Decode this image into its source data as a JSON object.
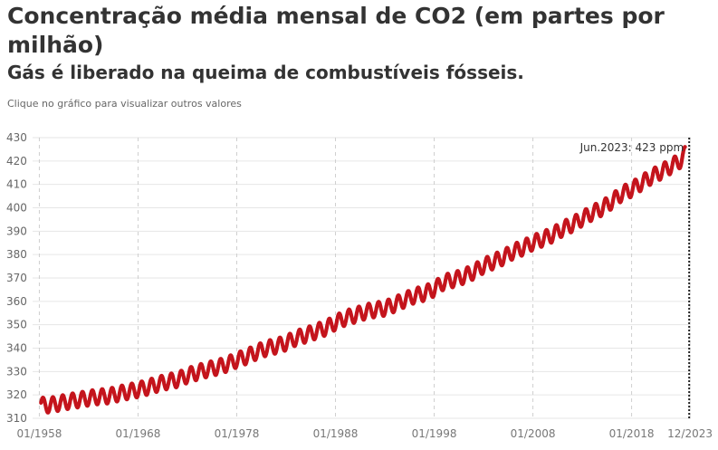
{
  "title": "Concentração média mensal de CO2 (em partes por milhão)",
  "subtitle": "Gás é liberado na queima de combustíveis fósseis.",
  "note": "Clique no gráfico para visualizar outros valores",
  "chart_data": {
    "type": "line",
    "series": [
      {
        "color": "#c4141c",
        "points": [
          [
            "1958-03",
            315.7
          ],
          [
            "1959-01",
            315.6
          ],
          [
            "1960-01",
            316.4
          ],
          [
            "1961-01",
            317.2
          ],
          [
            "1962-01",
            317.9
          ],
          [
            "1963-01",
            318.6
          ],
          [
            "1964-01",
            319.2
          ],
          [
            "1965-01",
            319.5
          ],
          [
            "1966-01",
            320.5
          ],
          [
            "1967-01",
            321.4
          ],
          [
            "1968-01",
            322.2
          ],
          [
            "1969-01",
            323.3
          ],
          [
            "1970-01",
            324.6
          ],
          [
            "1971-01",
            325.7
          ],
          [
            "1972-01",
            326.5
          ],
          [
            "1973-01",
            328.3
          ],
          [
            "1974-01",
            329.6
          ],
          [
            "1975-01",
            330.8
          ],
          [
            "1976-01",
            331.8
          ],
          [
            "1977-01",
            333.1
          ],
          [
            "1978-01",
            334.9
          ],
          [
            "1979-01",
            336.4
          ],
          [
            "1980-01",
            338.3
          ],
          [
            "1981-01",
            339.9
          ],
          [
            "1982-01",
            340.9
          ],
          [
            "1983-01",
            342.2
          ],
          [
            "1984-01",
            344.3
          ],
          [
            "1985-01",
            345.6
          ],
          [
            "1986-01",
            347.1
          ],
          [
            "1987-01",
            348.6
          ],
          [
            "1988-01",
            350.9
          ],
          [
            "1989-01",
            352.9
          ],
          [
            "1990-01",
            354.1
          ],
          [
            "1991-01",
            355.5
          ],
          [
            "1992-01",
            356.4
          ],
          [
            "1993-01",
            357.0
          ],
          [
            "1994-01",
            358.7
          ],
          [
            "1995-01",
            360.6
          ],
          [
            "1996-01",
            362.4
          ],
          [
            "1997-01",
            363.4
          ],
          [
            "1998-01",
            365.3
          ],
          [
            "1999-01",
            368.3
          ],
          [
            "2000-01",
            369.3
          ],
          [
            "2001-01",
            370.7
          ],
          [
            "2002-01",
            372.6
          ],
          [
            "2003-01",
            375.2
          ],
          [
            "2004-01",
            377.0
          ],
          [
            "2005-01",
            378.8
          ],
          [
            "2006-01",
            381.3
          ],
          [
            "2007-01",
            382.9
          ],
          [
            "2008-01",
            385.1
          ],
          [
            "2009-01",
            386.7
          ],
          [
            "2010-01",
            388.5
          ],
          [
            "2011-01",
            391.0
          ],
          [
            "2012-01",
            392.9
          ],
          [
            "2013-01",
            395.4
          ],
          [
            "2014-01",
            397.8
          ],
          [
            "2015-01",
            399.8
          ],
          [
            "2016-01",
            402.7
          ],
          [
            "2017-01",
            406.0
          ],
          [
            "2018-01",
            407.9
          ],
          [
            "2019-01",
            410.6
          ],
          [
            "2020-01",
            413.3
          ],
          [
            "2021-01",
            415.4
          ],
          [
            "2022-01",
            417.8
          ],
          [
            "2023-01",
            420.4
          ],
          [
            "2023-06",
            423.0
          ]
        ],
        "seasonal_amplitude": 3.2
      }
    ],
    "ylim": [
      310,
      430
    ],
    "yticks": [
      "310",
      "320",
      "330",
      "340",
      "350",
      "360",
      "370",
      "380",
      "390",
      "400",
      "410",
      "420",
      "430"
    ],
    "xlim": [
      "1957-07",
      "2024-01"
    ],
    "xticks": [
      {
        "date": "1958-01",
        "label": "01/1958"
      },
      {
        "date": "1968-01",
        "label": "01/1968"
      },
      {
        "date": "1978-01",
        "label": "01/1978"
      },
      {
        "date": "1988-01",
        "label": "01/1988"
      },
      {
        "date": "1998-01",
        "label": "01/1998"
      },
      {
        "date": "2008-01",
        "label": "01/2008"
      },
      {
        "date": "2018-01",
        "label": "01/2018"
      },
      {
        "date": "2023-12",
        "label": "12/2023"
      }
    ],
    "annotation": {
      "date": "2023-11",
      "label": "Jun.2023: 423 ppm"
    },
    "grid": true
  }
}
